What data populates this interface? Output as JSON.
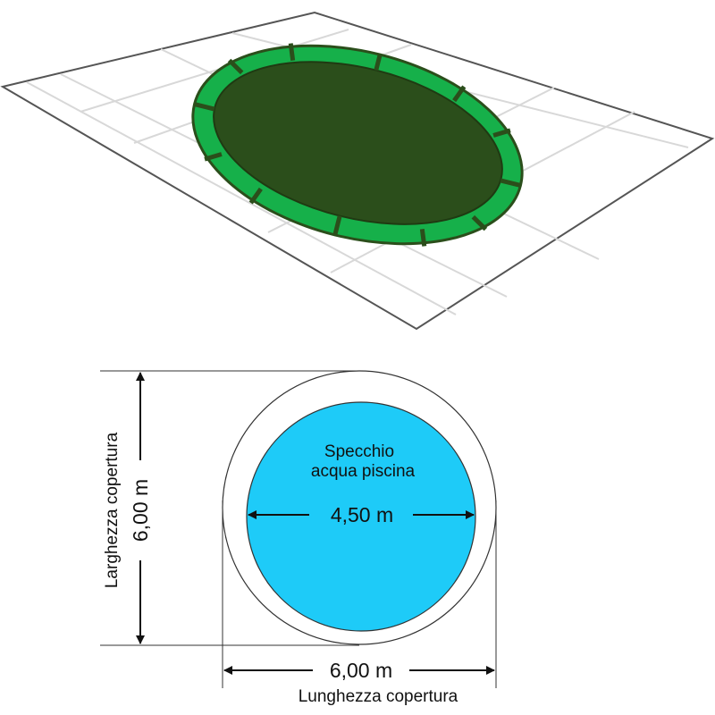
{
  "colors": {
    "cover_green": "#16b04a",
    "cover_center": "#2b4e1b",
    "water": "#1ecbf8",
    "outline": "#444444"
  },
  "pool": {
    "water_label_line1": "Specchio",
    "water_label_line2": "acqua piscina",
    "water_diameter": "4,50 m"
  },
  "cover": {
    "width_value": "6,00 m",
    "width_label": "Larghezza copertura",
    "length_value": "6,00 m",
    "length_label": "Lunghezza copertura"
  }
}
